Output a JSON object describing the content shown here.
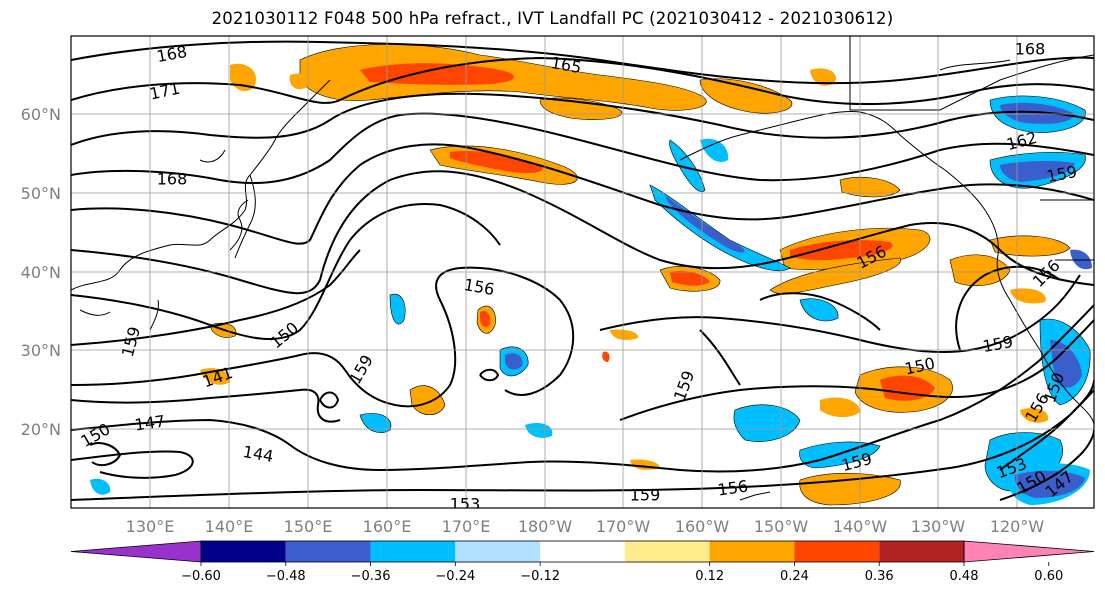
{
  "title": "2021030112 F048 500 hPa refract., IVT Landfall PC (2021030412 - 2021030612)",
  "map": {
    "lat_labels": [
      "60°N",
      "50°N",
      "40°N",
      "30°N",
      "20°N"
    ],
    "lon_labels": [
      "130°E",
      "140°E",
      "150°E",
      "160°E",
      "170°E",
      "180°W",
      "170°W",
      "160°W",
      "150°W",
      "140°W",
      "130°W",
      "120°W"
    ],
    "contour_labels": [
      "168",
      "171",
      "168",
      "165",
      "168",
      "162",
      "159",
      "156",
      "156",
      "156",
      "159",
      "150",
      "159",
      "141",
      "147",
      "150",
      "144",
      "153",
      "159",
      "156",
      "159",
      "150",
      "159",
      "156",
      "153",
      "150",
      "147",
      "150",
      "159"
    ]
  },
  "colorbar": {
    "colors": [
      "#9932cc",
      "#00008b",
      "#3a5fcd",
      "#00bfff",
      "#b0e2ff",
      "#ffffff",
      "#ffec8b",
      "#ffa500",
      "#ff4500",
      "#b22222",
      "#ff83b4"
    ],
    "tick_labels": [
      "−0.60",
      "−0.48",
      "−0.36",
      "−0.24",
      "−0.12",
      "0.12",
      "0.24",
      "0.36",
      "0.48",
      "0.60"
    ]
  }
}
